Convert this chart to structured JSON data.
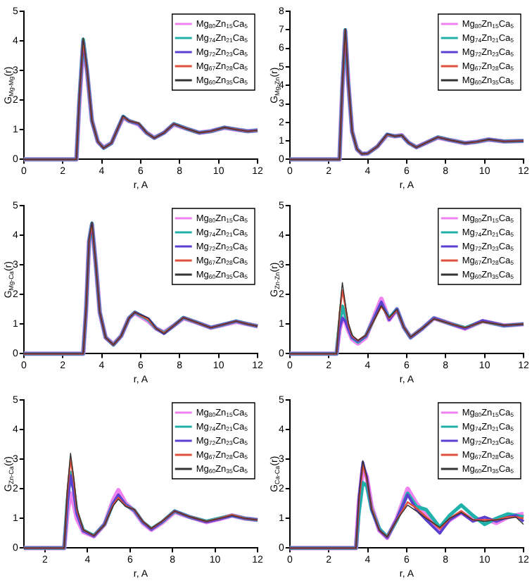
{
  "chart_data": [
    {
      "type": "line",
      "xlabel": "r, A",
      "ylabel": "G$_{Mg-Mg}$(r)",
      "xlim": [
        0,
        12
      ],
      "xticks": [
        0,
        2,
        4,
        6,
        8,
        10,
        12
      ],
      "ylim": [
        0,
        5
      ],
      "yticks": [
        0,
        1,
        2,
        3,
        4,
        5
      ],
      "legend": "top right",
      "x": [
        0,
        2.7,
        2.85,
        3.05,
        3.25,
        3.5,
        3.8,
        4.1,
        4.5,
        4.8,
        5.1,
        5.4,
        5.9,
        6.3,
        6.7,
        7.2,
        7.7,
        8.3,
        9,
        9.6,
        10.3,
        11,
        11.5,
        12
      ],
      "series": [
        {
          "name": "Mg$_{80}$Zn$_{15}$Ca$_{5}$",
          "color": "#ee82ee",
          "values": [
            0,
            0,
            1.9,
            3.95,
            2.95,
            1.3,
            0.6,
            0.4,
            0.55,
            1.0,
            1.42,
            1.3,
            1.18,
            0.9,
            0.73,
            0.9,
            1.18,
            1.05,
            0.9,
            0.95,
            1.07,
            1.0,
            0.95,
            0.98
          ]
        },
        {
          "name": "Mg$_{74}$Zn$_{21}$Ca$_{5}$",
          "color": "#20b2aa",
          "values": [
            0,
            0,
            2.0,
            4.05,
            3.0,
            1.3,
            0.6,
            0.38,
            0.55,
            1.0,
            1.45,
            1.3,
            1.2,
            0.9,
            0.72,
            0.9,
            1.2,
            1.05,
            0.9,
            0.95,
            1.08,
            1.0,
            0.95,
            0.98
          ]
        },
        {
          "name": "Mg$_{72}$Zn$_{23}$Ca$_{5}$",
          "color": "#5a3fd0",
          "values": [
            0,
            0,
            2.0,
            4.0,
            3.0,
            1.3,
            0.6,
            0.38,
            0.55,
            1.0,
            1.45,
            1.3,
            1.2,
            0.9,
            0.72,
            0.9,
            1.2,
            1.05,
            0.9,
            0.95,
            1.08,
            1.0,
            0.95,
            0.98
          ]
        },
        {
          "name": "Mg$_{67}$Zn$_{28}$Ca$_{5}$",
          "color": "#e0503c",
          "values": [
            0,
            0,
            2.05,
            4.05,
            3.0,
            1.3,
            0.6,
            0.38,
            0.55,
            1.0,
            1.45,
            1.3,
            1.22,
            0.9,
            0.72,
            0.9,
            1.2,
            1.05,
            0.9,
            0.95,
            1.08,
            1.0,
            0.95,
            0.98
          ]
        },
        {
          "name": "Mg$_{60}$Zn$_{35}$Ca$_{5}$",
          "color": "#333333",
          "values": [
            0,
            0,
            2.1,
            4.1,
            3.05,
            1.3,
            0.6,
            0.38,
            0.55,
            1.0,
            1.47,
            1.3,
            1.22,
            0.9,
            0.72,
            0.9,
            1.2,
            1.05,
            0.9,
            0.95,
            1.08,
            1.0,
            0.95,
            0.98
          ]
        }
      ]
    },
    {
      "type": "line",
      "xlabel": "r, A",
      "ylabel": "G$_{Mg-Zn}$(r)",
      "xlim": [
        0,
        12
      ],
      "xticks": [
        0,
        2,
        4,
        6,
        8,
        10,
        12
      ],
      "ylim": [
        0,
        8
      ],
      "yticks": [
        0,
        1,
        2,
        3,
        4,
        5,
        6,
        7,
        8
      ],
      "legend": "top right",
      "x": [
        0,
        2.55,
        2.7,
        2.85,
        3.0,
        3.2,
        3.45,
        3.7,
        4.0,
        4.5,
        5.0,
        5.4,
        5.75,
        6.1,
        6.5,
        7.0,
        7.6,
        8.2,
        9,
        9.6,
        10.2,
        11,
        12
      ],
      "series": [
        {
          "name": "Mg$_{80}$Zn$_{15}$Ca$_{5}$",
          "color": "#ee82ee",
          "values": [
            0,
            0,
            3.9,
            6.9,
            4.2,
            1.5,
            0.55,
            0.3,
            0.32,
            0.7,
            1.33,
            1.25,
            1.3,
            0.9,
            0.66,
            0.9,
            1.18,
            1.05,
            0.88,
            0.95,
            1.07,
            0.97,
            1.0
          ]
        },
        {
          "name": "Mg$_{74}$Zn$_{21}$Ca$_{5}$",
          "color": "#20b2aa",
          "values": [
            0,
            0,
            4.0,
            7.0,
            4.2,
            1.5,
            0.55,
            0.3,
            0.32,
            0.7,
            1.35,
            1.25,
            1.3,
            0.9,
            0.65,
            0.9,
            1.2,
            1.05,
            0.88,
            0.95,
            1.08,
            0.97,
            1.0
          ]
        },
        {
          "name": "Mg$_{72}$Zn$_{23}$Ca$_{5}$",
          "color": "#5a3fd0",
          "values": [
            0,
            0,
            4.0,
            7.0,
            4.2,
            1.5,
            0.55,
            0.3,
            0.32,
            0.7,
            1.35,
            1.25,
            1.3,
            0.9,
            0.65,
            0.9,
            1.2,
            1.05,
            0.88,
            0.95,
            1.08,
            0.97,
            1.0
          ]
        },
        {
          "name": "Mg$_{67}$Zn$_{28}$Ca$_{5}$",
          "color": "#e0503c",
          "values": [
            0,
            0,
            4.05,
            7.0,
            4.25,
            1.5,
            0.55,
            0.3,
            0.32,
            0.7,
            1.35,
            1.25,
            1.3,
            0.9,
            0.65,
            0.9,
            1.2,
            1.05,
            0.88,
            0.95,
            1.08,
            0.97,
            1.0
          ]
        },
        {
          "name": "Mg$_{60}$Zn$_{35}$Ca$_{5}$",
          "color": "#333333",
          "values": [
            0,
            0,
            4.1,
            7.05,
            4.3,
            1.5,
            0.55,
            0.3,
            0.32,
            0.7,
            1.37,
            1.25,
            1.3,
            0.9,
            0.65,
            0.9,
            1.2,
            1.05,
            0.88,
            0.95,
            1.08,
            0.97,
            1.0
          ]
        }
      ]
    },
    {
      "type": "line",
      "xlabel": "r, A",
      "ylabel": "G$_{Mg-Ca}$(r)",
      "xlim": [
        0,
        12
      ],
      "xticks": [
        0,
        2,
        4,
        6,
        8,
        10,
        12
      ],
      "ylim": [
        0,
        5
      ],
      "yticks": [
        0,
        1,
        2,
        3,
        4,
        5
      ],
      "legend": "top right",
      "x": [
        0,
        3.05,
        3.2,
        3.35,
        3.5,
        3.7,
        3.9,
        4.2,
        4.6,
        5.0,
        5.4,
        5.7,
        6.4,
        6.8,
        7.2,
        7.7,
        8.2,
        8.9,
        9.6,
        10.2,
        10.9,
        11.5,
        12
      ],
      "series": [
        {
          "name": "Mg$_{80}$Zn$_{15}$Ca$_{5}$",
          "color": "#ee82ee",
          "values": [
            0,
            0,
            1.5,
            3.8,
            4.35,
            3.0,
            1.4,
            0.55,
            0.32,
            0.6,
            1.2,
            1.38,
            1.1,
            0.85,
            0.72,
            0.95,
            1.2,
            1.05,
            0.88,
            0.97,
            1.08,
            1.0,
            0.93
          ]
        },
        {
          "name": "Mg$_{74}$Zn$_{21}$Ca$_{5}$",
          "color": "#20b2aa",
          "values": [
            0,
            0,
            1.5,
            3.8,
            4.4,
            3.0,
            1.4,
            0.55,
            0.3,
            0.6,
            1.2,
            1.4,
            1.15,
            0.85,
            0.7,
            0.95,
            1.22,
            1.05,
            0.88,
            0.98,
            1.1,
            1.0,
            0.93
          ]
        },
        {
          "name": "Mg$_{72}$Zn$_{23}$Ca$_{5}$",
          "color": "#5a3fd0",
          "values": [
            0,
            0,
            1.5,
            3.8,
            4.4,
            3.0,
            1.4,
            0.55,
            0.3,
            0.6,
            1.2,
            1.4,
            1.18,
            0.85,
            0.68,
            0.95,
            1.22,
            1.05,
            0.88,
            0.98,
            1.1,
            1.0,
            0.93
          ]
        },
        {
          "name": "Mg$_{67}$Zn$_{28}$Ca$_{5}$",
          "color": "#e0503c",
          "values": [
            0,
            0,
            1.5,
            3.8,
            4.4,
            3.0,
            1.4,
            0.55,
            0.3,
            0.6,
            1.2,
            1.4,
            1.15,
            0.85,
            0.7,
            0.95,
            1.22,
            1.05,
            0.88,
            0.98,
            1.1,
            1.0,
            0.93
          ]
        },
        {
          "name": "Mg$_{60}$Zn$_{35}$Ca$_{5}$",
          "color": "#333333",
          "values": [
            0,
            0,
            1.55,
            3.85,
            4.45,
            3.0,
            1.4,
            0.55,
            0.3,
            0.6,
            1.2,
            1.4,
            1.2,
            0.85,
            0.68,
            0.95,
            1.22,
            1.05,
            0.88,
            0.98,
            1.1,
            1.0,
            0.93
          ]
        }
      ]
    },
    {
      "type": "line",
      "xlabel": "r, A",
      "ylabel": "G$_{Zn-Zn}$(r)",
      "xlim": [
        0,
        12
      ],
      "xticks": [
        0,
        2,
        4,
        6,
        8,
        10,
        12
      ],
      "ylim": [
        0,
        5
      ],
      "yticks": [
        0,
        1,
        2,
        3,
        4,
        5
      ],
      "legend": "top right",
      "x": [
        0,
        2.4,
        2.55,
        2.7,
        2.85,
        3.0,
        3.2,
        3.5,
        3.9,
        4.3,
        4.7,
        5.1,
        5.5,
        5.85,
        6.2,
        6.8,
        7.4,
        8.3,
        9,
        9.9,
        11,
        12
      ],
      "series": [
        {
          "name": "Mg$_{80}$Zn$_{15}$Ca$_{5}$",
          "color": "#ee82ee",
          "values": [
            0,
            0,
            0.8,
            1.2,
            1.1,
            0.8,
            0.5,
            0.35,
            0.55,
            1.2,
            1.85,
            1.15,
            1.5,
            0.9,
            0.55,
            0.85,
            1.2,
            1.0,
            0.85,
            1.1,
            0.95,
            1.0
          ]
        },
        {
          "name": "Mg$_{74}$Zn$_{21}$Ca$_{5}$",
          "color": "#20b2aa",
          "values": [
            0,
            0,
            1.0,
            1.6,
            1.3,
            0.9,
            0.55,
            0.4,
            0.6,
            1.15,
            1.7,
            1.2,
            1.5,
            0.9,
            0.55,
            0.85,
            1.2,
            1.0,
            0.87,
            1.1,
            0.95,
            1.0
          ]
        },
        {
          "name": "Mg$_{72}$Zn$_{23}$Ca$_{5}$",
          "color": "#5a3fd0",
          "values": [
            0,
            0,
            0.85,
            1.2,
            1.1,
            0.85,
            0.55,
            0.42,
            0.6,
            1.15,
            1.75,
            1.15,
            1.5,
            0.9,
            0.55,
            0.85,
            1.2,
            1.0,
            0.85,
            1.12,
            0.95,
            1.0
          ]
        },
        {
          "name": "Mg$_{67}$Zn$_{28}$Ca$_{5}$",
          "color": "#e0503c",
          "values": [
            0,
            0,
            1.3,
            2.15,
            1.6,
            1.0,
            0.6,
            0.45,
            0.62,
            1.1,
            1.6,
            1.2,
            1.48,
            0.9,
            0.56,
            0.85,
            1.18,
            1.0,
            0.88,
            1.08,
            0.96,
            1.0
          ]
        },
        {
          "name": "Mg$_{60}$Zn$_{35}$Ca$_{5}$",
          "color": "#333333",
          "values": [
            0,
            0,
            1.4,
            2.4,
            1.7,
            1.05,
            0.62,
            0.45,
            0.62,
            1.1,
            1.62,
            1.22,
            1.5,
            0.9,
            0.56,
            0.85,
            1.18,
            1.0,
            0.88,
            1.08,
            0.96,
            1.0
          ]
        }
      ]
    },
    {
      "type": "line",
      "xlabel": "r, A",
      "ylabel": "G$_{Zn-Ca}$(r)",
      "xlim": [
        1,
        12
      ],
      "xticks": [
        2,
        4,
        6,
        8,
        10,
        12
      ],
      "ylim": [
        0,
        5
      ],
      "yticks": [
        0,
        1,
        2,
        3,
        4,
        5
      ],
      "legend": "top right",
      "x": [
        1,
        2.9,
        3.05,
        3.2,
        3.35,
        3.5,
        3.8,
        4.3,
        4.8,
        5.2,
        5.45,
        5.8,
        6.2,
        6.6,
        7.0,
        7.5,
        8.1,
        8.8,
        9.6,
        10.2,
        10.8,
        11.4,
        12
      ],
      "series": [
        {
          "name": "Mg$_{80}$Zn$_{15}$Ca$_{5}$",
          "color": "#ee82ee",
          "values": [
            0,
            0,
            1.2,
            1.85,
            1.5,
            1.0,
            0.55,
            0.4,
            0.8,
            1.6,
            1.95,
            1.5,
            1.25,
            0.85,
            0.62,
            0.85,
            1.22,
            1.05,
            0.88,
            0.98,
            1.1,
            1.0,
            0.95
          ]
        },
        {
          "name": "Mg$_{74}$Zn$_{21}$Ca$_{5}$",
          "color": "#20b2aa",
          "values": [
            0,
            0,
            1.6,
            2.55,
            2.0,
            1.2,
            0.6,
            0.42,
            0.8,
            1.5,
            1.75,
            1.45,
            1.28,
            0.88,
            0.65,
            0.88,
            1.25,
            1.05,
            0.9,
            1.0,
            1.1,
            1.0,
            0.95
          ]
        },
        {
          "name": "Mg$_{72}$Zn$_{23}$Ca$_{5}$",
          "color": "#5a3fd0",
          "values": [
            0,
            0,
            1.5,
            2.45,
            1.9,
            1.15,
            0.58,
            0.4,
            0.8,
            1.5,
            1.8,
            1.45,
            1.28,
            0.88,
            0.63,
            0.88,
            1.25,
            1.05,
            0.88,
            0.98,
            1.1,
            1.0,
            0.95
          ]
        },
        {
          "name": "Mg$_{67}$Zn$_{28}$Ca$_{5}$",
          "color": "#e0503c",
          "values": [
            0,
            0,
            1.9,
            3.0,
            2.3,
            1.3,
            0.62,
            0.42,
            0.78,
            1.45,
            1.7,
            1.42,
            1.3,
            0.9,
            0.66,
            0.9,
            1.25,
            1.06,
            0.9,
            1.0,
            1.12,
            1.0,
            0.95
          ]
        },
        {
          "name": "Mg$_{60}$Zn$_{35}$Ca$_{5}$",
          "color": "#333333",
          "values": [
            0,
            0,
            2.0,
            3.2,
            2.4,
            1.35,
            0.62,
            0.42,
            0.78,
            1.42,
            1.65,
            1.4,
            1.3,
            0.9,
            0.66,
            0.9,
            1.25,
            1.06,
            0.9,
            1.0,
            1.1,
            1.0,
            0.95
          ]
        }
      ]
    },
    {
      "type": "line",
      "xlabel": "r, A",
      "ylabel": "G$_{Ca-Ca}$(r)",
      "xlim": [
        0,
        12
      ],
      "xticks": [
        0,
        2,
        4,
        6,
        8,
        10,
        12
      ],
      "ylim": [
        0,
        5
      ],
      "yticks": [
        0,
        1,
        2,
        3,
        4,
        5
      ],
      "legend": "top right",
      "x": [
        0,
        3.4,
        3.55,
        3.75,
        3.95,
        4.2,
        4.6,
        5.0,
        5.5,
        6.05,
        6.5,
        7.0,
        7.7,
        8.2,
        8.8,
        9.4,
        10.0,
        10.6,
        11.2,
        11.6,
        12
      ],
      "series": [
        {
          "name": "Mg$_{80}$Zn$_{15}$Ca$_{5}$",
          "color": "#ee82ee",
          "values": [
            0,
            0,
            1.5,
            2.7,
            2.4,
            1.4,
            0.6,
            0.35,
            1.0,
            2.0,
            1.5,
            1.1,
            0.6,
            0.95,
            1.2,
            0.95,
            1.0,
            0.85,
            1.05,
            1.1,
            1.15
          ]
        },
        {
          "name": "Mg$_{74}$Zn$_{21}$Ca$_{5}$",
          "color": "#20b2aa",
          "values": [
            0,
            0,
            1.2,
            2.2,
            2.1,
            1.3,
            0.65,
            0.38,
            0.95,
            1.85,
            1.4,
            1.3,
            0.7,
            1.1,
            1.45,
            1.1,
            0.8,
            1.0,
            1.15,
            1.1,
            1.05
          ]
        },
        {
          "name": "Mg$_{72}$Zn$_{23}$Ca$_{5}$",
          "color": "#5a3fd0",
          "values": [
            0,
            0,
            1.7,
            2.9,
            2.4,
            1.3,
            0.6,
            0.35,
            1.0,
            1.8,
            1.3,
            0.95,
            0.5,
            0.95,
            1.2,
            0.9,
            1.05,
            0.9,
            1.05,
            1.1,
            0.9
          ]
        },
        {
          "name": "Mg$_{67}$Zn$_{28}$Ca$_{5}$",
          "color": "#e0503c",
          "values": [
            0,
            0,
            1.6,
            2.8,
            2.35,
            1.35,
            0.6,
            0.38,
            0.95,
            1.55,
            1.35,
            1.05,
            0.65,
            1.0,
            1.25,
            0.95,
            0.95,
            0.95,
            1.05,
            1.05,
            1.0
          ]
        },
        {
          "name": "Mg$_{60}$Zn$_{35}$Ca$_{5}$",
          "color": "#333333",
          "values": [
            0,
            0,
            1.75,
            2.95,
            2.4,
            1.3,
            0.6,
            0.38,
            0.95,
            1.45,
            1.25,
            1.0,
            0.7,
            1.0,
            1.2,
            0.95,
            0.9,
            0.95,
            1.0,
            1.05,
            0.8
          ]
        }
      ]
    }
  ]
}
